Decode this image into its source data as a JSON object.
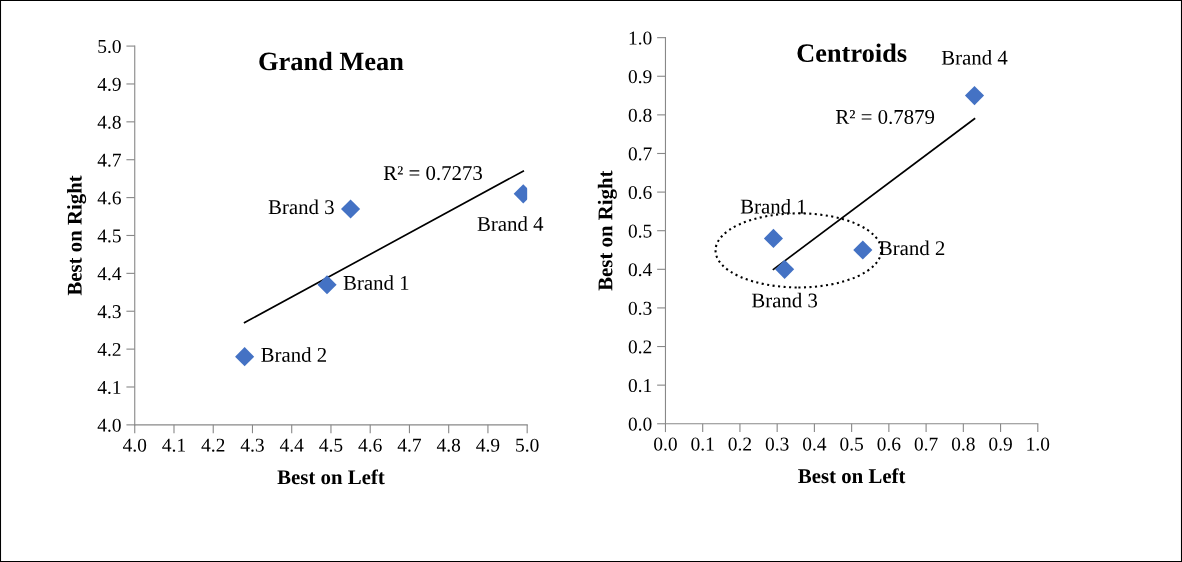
{
  "chart_data": [
    {
      "type": "scatter",
      "title": "Grand Mean",
      "xlabel": "Best on Left",
      "ylabel": "Best on Right",
      "series": [
        {
          "type": "scatter",
          "color": "#4472c4",
          "marker": "diamond",
          "x": [
            4.49,
            4.28,
            4.55,
            4.99
          ],
          "values": [
            4.37,
            4.18,
            4.57,
            4.61
          ]
        },
        {
          "type": "line",
          "color": "#000000",
          "marker": "none",
          "line_style": "solid",
          "x": [
            4.28,
            4.99
          ],
          "values": [
            4.27,
            4.67
          ]
        }
      ],
      "annotations": [
        {
          "text": "Brand 1",
          "x": 4.49,
          "y": 4.37
        },
        {
          "text": "Brand 2",
          "x": 4.28,
          "y": 4.18
        },
        {
          "text": "Brand 3",
          "x": 4.55,
          "y": 4.57
        },
        {
          "text": "Brand 4",
          "x": 4.99,
          "y": 4.61
        },
        "R² = 0.7273"
      ],
      "xlim": [
        4.0,
        5.0
      ],
      "ylim": [
        4.0,
        5.0
      ],
      "xticks": [
        {
          "value": 4.0,
          "label": "4.0"
        },
        4.1,
        4.2,
        4.3,
        4.4,
        4.5,
        4.6,
        4.7,
        4.8,
        4.9,
        {
          "value": 5.0,
          "label": "5.0"
        }
      ],
      "yticks": [
        {
          "value": 4.0,
          "label": "4.0"
        },
        4.1,
        4.2,
        4.3,
        4.4,
        4.5,
        4.6,
        4.7,
        4.8,
        4.9,
        {
          "value": 5.0,
          "label": "5.0"
        }
      ],
      "grid": false,
      "legend": false
    },
    {
      "type": "scatter",
      "title": "Centroids",
      "xlabel": "Best on Left",
      "ylabel": "Best on Right",
      "series": [
        {
          "type": "scatter",
          "color": "#4472c4",
          "marker": "diamond",
          "x": [
            0.29,
            0.53,
            0.32,
            0.83
          ],
          "values": [
            0.48,
            0.45,
            0.4,
            0.85
          ]
        },
        {
          "type": "line",
          "color": "#000000",
          "marker": "none",
          "line_style": "solid",
          "x": [
            0.29,
            0.83
          ],
          "values": [
            0.4,
            0.79
          ]
        }
      ],
      "annotations": [
        {
          "text": "Brand 1",
          "x": 0.29,
          "y": 0.48
        },
        {
          "text": "Brand 2",
          "x": 0.53,
          "y": 0.45
        },
        {
          "text": "Brand 3",
          "x": 0.32,
          "y": 0.4
        },
        {
          "text": "Brand 4",
          "x": 0.83,
          "y": 0.85
        },
        "R² = 0.7879"
      ],
      "xlim": [
        0.0,
        1.0
      ],
      "ylim": [
        0.0,
        1.0
      ],
      "xticks": [
        {
          "value": 0.0,
          "label": "0.0"
        },
        0.1,
        0.2,
        0.3,
        0.4,
        0.5,
        0.6,
        0.7,
        0.8,
        0.9,
        {
          "value": 1.0,
          "label": "1.0"
        }
      ],
      "yticks": [
        {
          "value": 0.0,
          "label": "0.0"
        },
        0.1,
        0.2,
        0.3,
        0.4,
        0.5,
        0.6,
        0.7,
        0.8,
        0.9,
        {
          "value": 1.0,
          "label": "1.0"
        }
      ],
      "grid": false,
      "legend": false
    }
  ]
}
